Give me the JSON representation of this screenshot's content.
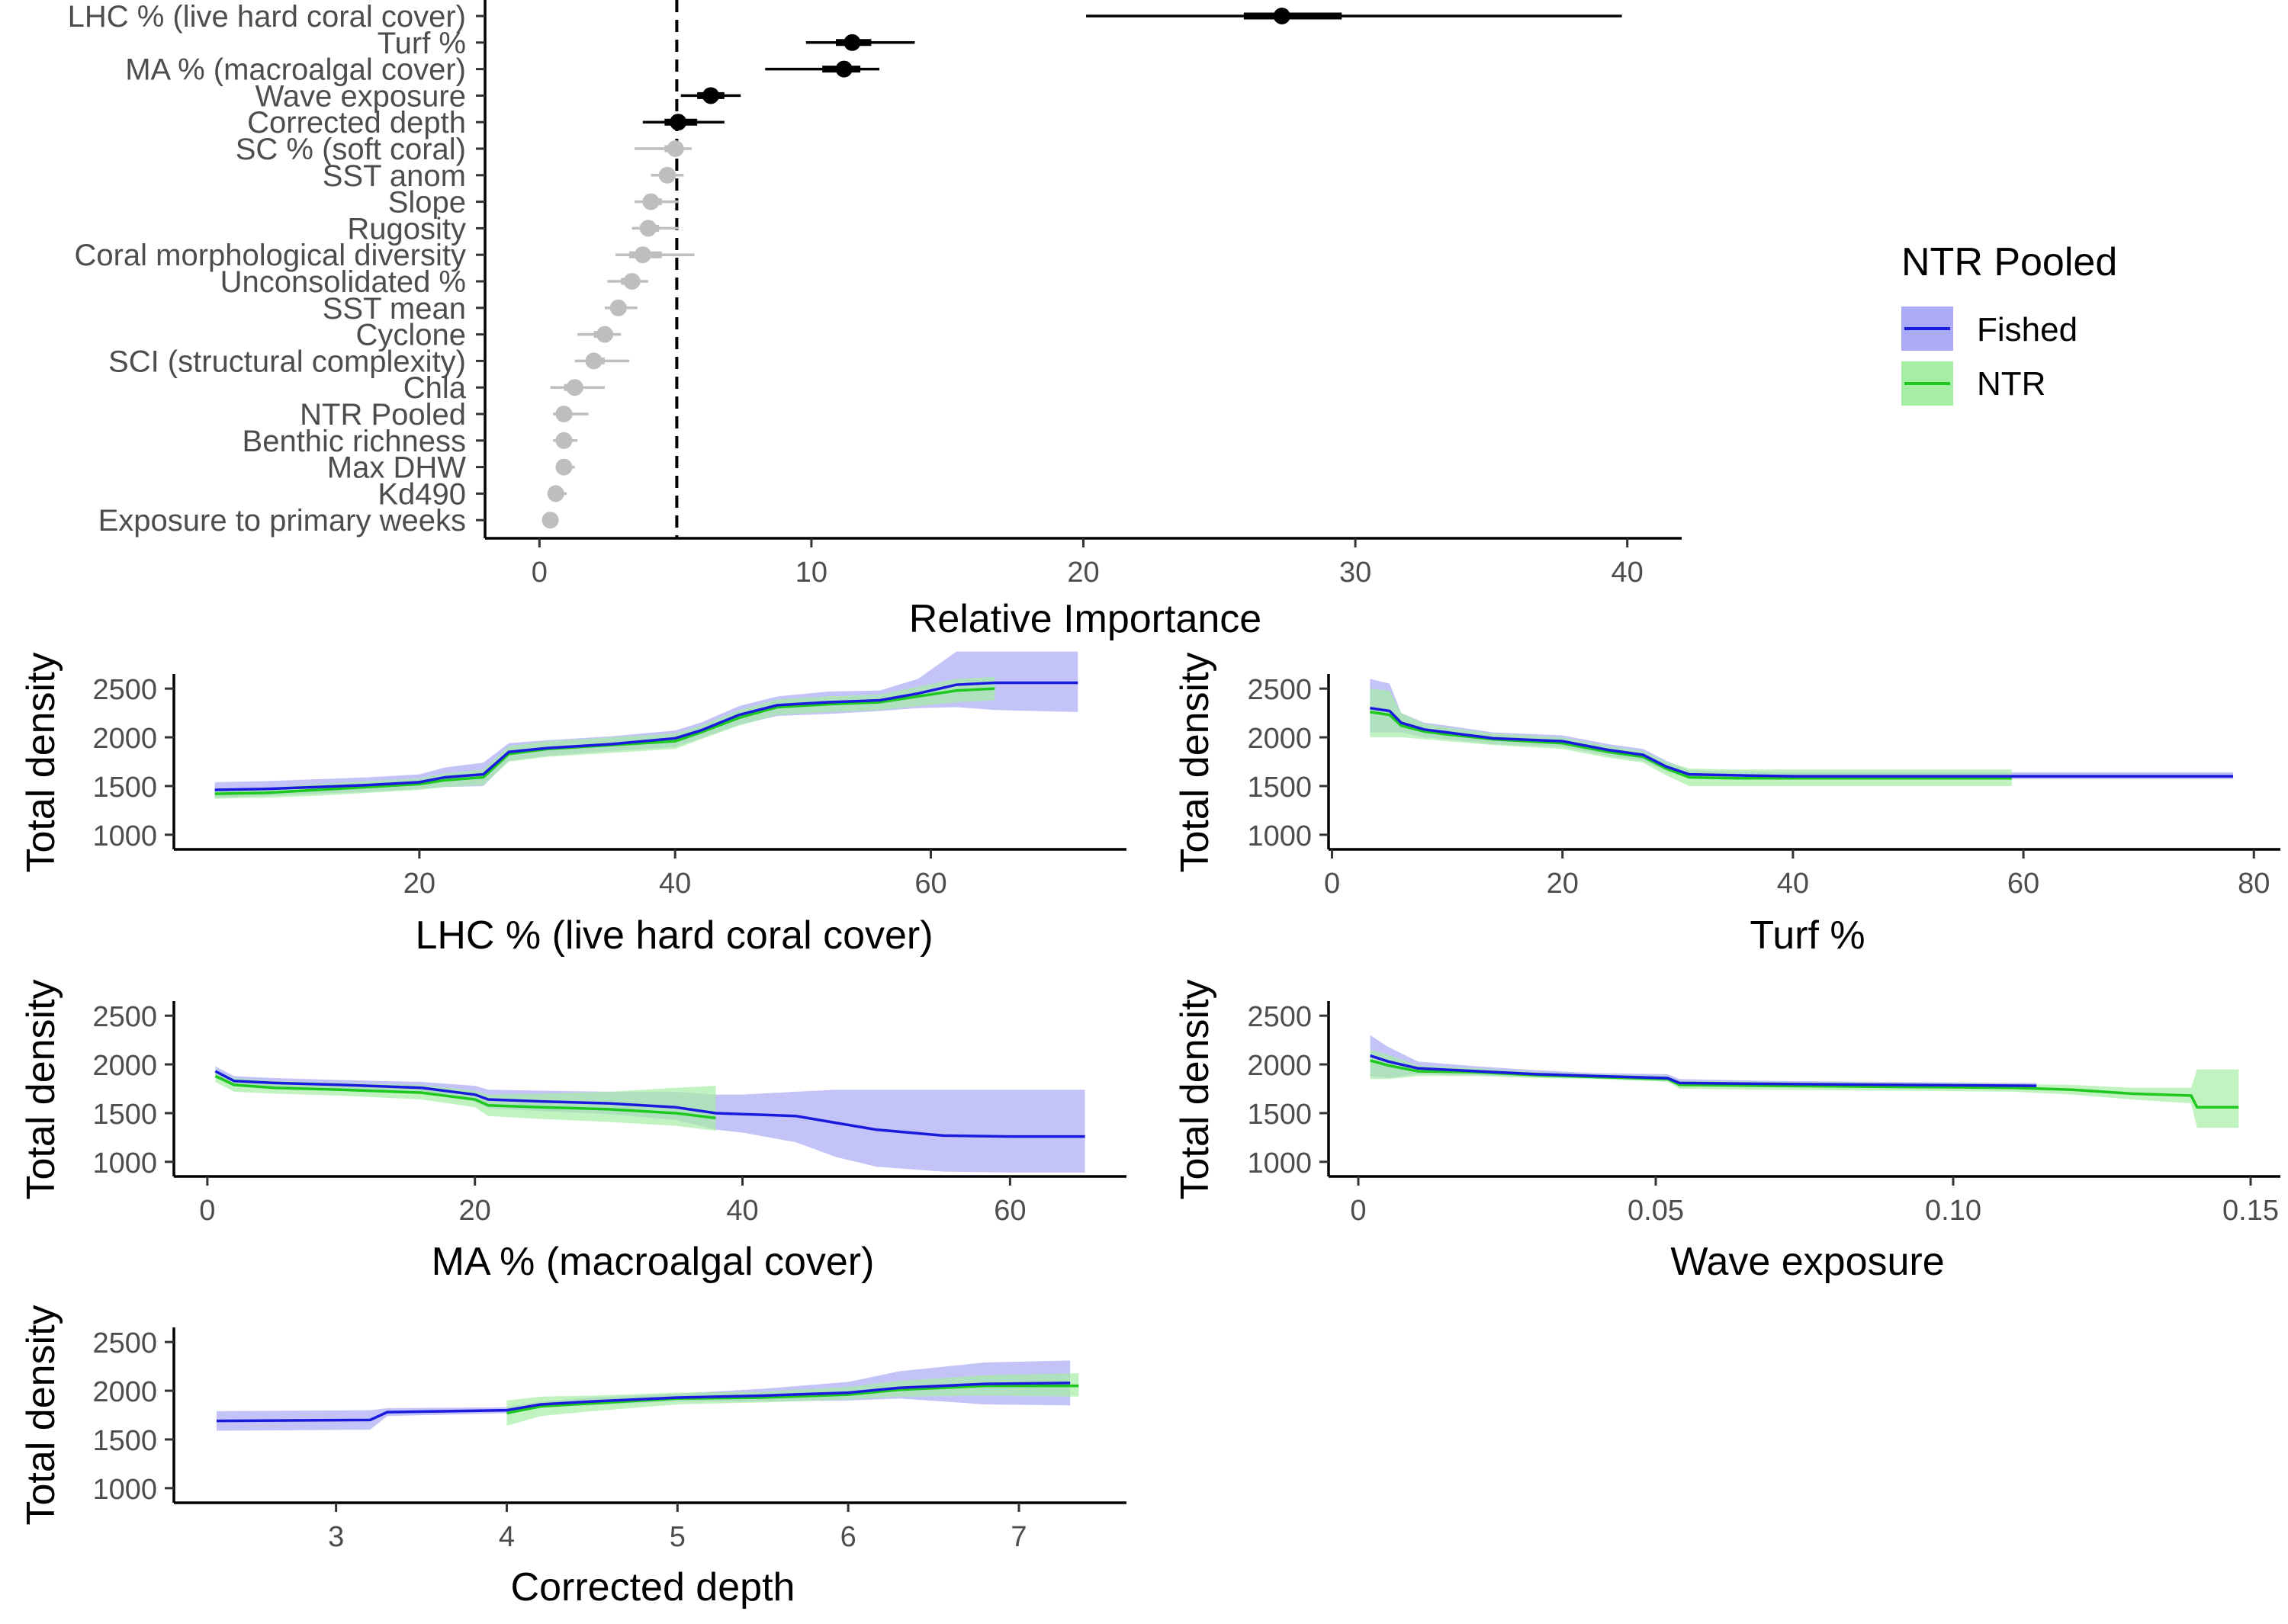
{
  "colors": {
    "fished": "#1a1adf",
    "fished_fill": "#aaaaf5",
    "ntr": "#1fc81f",
    "ntr_fill": "#a6eea6",
    "significant": "#000000",
    "nonsignificant": "#bebebe"
  },
  "legend": {
    "title": "NTR Pooled",
    "items": [
      "Fished",
      "NTR"
    ]
  },
  "chart_data": [
    {
      "type": "scatter",
      "xlabel": "Relative Importance",
      "xlim": [
        -2,
        42
      ],
      "xticks": [
        0,
        10,
        20,
        30,
        40
      ],
      "threshold": 5.05,
      "variables": [
        {
          "label": "LHC % (live hard coral cover)",
          "value": 27.3,
          "lo": 20.1,
          "hi": 39.8,
          "ilo": 25.9,
          "ihi": 29.5,
          "significant": true
        },
        {
          "label": "Turf %",
          "value": 11.5,
          "lo": 9.8,
          "hi": 13.8,
          "ilo": 10.9,
          "ihi": 12.2,
          "significant": true
        },
        {
          "label": "MA % (macroalgal cover)",
          "value": 11.2,
          "lo": 8.3,
          "hi": 12.5,
          "ilo": 10.4,
          "ihi": 11.8,
          "significant": true
        },
        {
          "label": "Wave exposure",
          "value": 6.3,
          "lo": 5.2,
          "hi": 7.4,
          "ilo": 5.8,
          "ihi": 6.8,
          "significant": true
        },
        {
          "label": "Corrected depth",
          "value": 5.1,
          "lo": 3.8,
          "hi": 6.8,
          "ilo": 4.6,
          "ihi": 5.8,
          "significant": true
        },
        {
          "label": "SC % (soft coral)",
          "value": 5.0,
          "lo": 3.5,
          "hi": 5.6,
          "ilo": 4.6,
          "ihi": 5.3,
          "significant": false
        },
        {
          "label": "SST anom",
          "value": 4.7,
          "lo": 4.1,
          "hi": 5.3,
          "ilo": 4.4,
          "ihi": 5.0,
          "significant": false
        },
        {
          "label": "Slope",
          "value": 4.1,
          "lo": 3.5,
          "hi": 5.1,
          "ilo": 3.8,
          "ihi": 4.5,
          "significant": false
        },
        {
          "label": "Rugosity",
          "value": 4.0,
          "lo": 3.4,
          "hi": 5.1,
          "ilo": 3.7,
          "ihi": 4.4,
          "significant": false
        },
        {
          "label": "Coral morphological diversity",
          "value": 3.8,
          "lo": 2.8,
          "hi": 5.7,
          "ilo": 3.3,
          "ihi": 4.5,
          "significant": false
        },
        {
          "label": "Unconsolidated %",
          "value": 3.4,
          "lo": 2.5,
          "hi": 4.0,
          "ilo": 3.0,
          "ihi": 3.7,
          "significant": false
        },
        {
          "label": "SST mean",
          "value": 2.9,
          "lo": 2.4,
          "hi": 3.6,
          "ilo": 2.7,
          "ihi": 3.2,
          "significant": false
        },
        {
          "label": "Cyclone",
          "value": 2.4,
          "lo": 1.4,
          "hi": 3.0,
          "ilo": 2.0,
          "ihi": 2.7,
          "significant": false
        },
        {
          "label": "SCI (structural complexity)",
          "value": 2.0,
          "lo": 1.3,
          "hi": 3.3,
          "ilo": 1.7,
          "ihi": 2.4,
          "significant": false
        },
        {
          "label": "Chla",
          "value": 1.3,
          "lo": 0.4,
          "hi": 2.4,
          "ilo": 0.9,
          "ihi": 1.6,
          "significant": false
        },
        {
          "label": "NTR Pooled",
          "value": 0.9,
          "lo": 0.5,
          "hi": 1.8,
          "ilo": 0.7,
          "ihi": 1.2,
          "significant": false
        },
        {
          "label": "Benthic richness",
          "value": 0.9,
          "lo": 0.5,
          "hi": 1.4,
          "ilo": 0.7,
          "ihi": 1.1,
          "significant": false
        },
        {
          "label": "Max DHW",
          "value": 0.9,
          "lo": 0.6,
          "hi": 1.3,
          "ilo": 0.7,
          "ihi": 1.1,
          "significant": false
        },
        {
          "label": "Kd490",
          "value": 0.6,
          "lo": 0.3,
          "hi": 1.0,
          "ilo": 0.5,
          "ihi": 0.8,
          "significant": false
        },
        {
          "label": "Exposure to primary weeks",
          "value": 0.4,
          "lo": 0.3,
          "hi": 0.6,
          "ilo": 0.3,
          "ihi": 0.5,
          "significant": false
        }
      ]
    },
    {
      "type": "line",
      "xlabel": "LHC % (live hard coral cover)",
      "ylabel": "Total density",
      "xlim": [
        0.8,
        75.3
      ],
      "xticks": [
        20,
        40,
        60
      ],
      "ylim": [
        850,
        2650
      ],
      "yticks": [
        1000,
        1500,
        2000,
        2500
      ],
      "series": [
        {
          "name": "Fished",
          "x": [
            4,
            8,
            12,
            16,
            20,
            22,
            25,
            27,
            30,
            35,
            40,
            42,
            45,
            48,
            52,
            56,
            59,
            62,
            65,
            68,
            71.5
          ],
          "y": [
            1460,
            1470,
            1490,
            1510,
            1540,
            1590,
            1620,
            1850,
            1890,
            1930,
            1990,
            2070,
            2230,
            2330,
            2360,
            2380,
            2450,
            2540,
            2560,
            2560,
            2560
          ],
          "lo": [
            1380,
            1400,
            1420,
            1440,
            1470,
            1490,
            1500,
            1760,
            1810,
            1860,
            1900,
            1990,
            2130,
            2220,
            2240,
            2270,
            2300,
            2310,
            2280,
            2270,
            2260
          ],
          "hi": [
            1540,
            1550,
            1570,
            1590,
            1620,
            1690,
            1740,
            1940,
            1970,
            2010,
            2070,
            2150,
            2320,
            2420,
            2470,
            2480,
            2600,
            2880,
            2880,
            2880,
            2880
          ]
        },
        {
          "name": "NTR",
          "x": [
            4,
            8,
            12,
            16,
            20,
            22,
            25,
            27,
            30,
            35,
            40,
            42,
            45,
            48,
            52,
            56,
            59,
            62,
            65
          ],
          "y": [
            1420,
            1430,
            1460,
            1490,
            1520,
            1560,
            1590,
            1830,
            1880,
            1920,
            1960,
            2050,
            2200,
            2310,
            2340,
            2360,
            2420,
            2480,
            2500
          ],
          "lo": [
            1370,
            1380,
            1400,
            1430,
            1460,
            1490,
            1510,
            1750,
            1800,
            1840,
            1880,
            1980,
            2120,
            2230,
            2260,
            2280,
            2320,
            2360,
            2380
          ],
          "hi": [
            1470,
            1480,
            1520,
            1550,
            1580,
            1630,
            1670,
            1910,
            1960,
            2000,
            2040,
            2120,
            2280,
            2390,
            2420,
            2440,
            2520,
            2600,
            2620
          ]
        }
      ]
    },
    {
      "type": "line",
      "xlabel": "Turf %",
      "ylabel": "Total density",
      "xlim": [
        -0.3,
        82.3
      ],
      "xticks": [
        0,
        20,
        40,
        60,
        80
      ],
      "ylim": [
        850,
        2650
      ],
      "yticks": [
        1000,
        1500,
        2000,
        2500
      ],
      "series": [
        {
          "name": "Fished",
          "x": [
            3.3,
            5,
            6,
            8,
            10,
            14,
            20,
            24,
            27,
            29,
            31,
            35,
            40,
            50,
            60,
            70,
            78.2
          ],
          "y": [
            2300,
            2270,
            2150,
            2080,
            2050,
            1990,
            1960,
            1870,
            1820,
            1700,
            1620,
            1610,
            1600,
            1600,
            1600,
            1600,
            1600
          ],
          "lo": [
            2050,
            2050,
            2050,
            2000,
            1980,
            1930,
            1900,
            1810,
            1760,
            1650,
            1580,
            1570,
            1570,
            1570,
            1570,
            1570,
            1570
          ],
          "hi": [
            2600,
            2550,
            2250,
            2150,
            2120,
            2050,
            2020,
            1930,
            1880,
            1760,
            1660,
            1650,
            1640,
            1640,
            1640,
            1640,
            1640
          ]
        },
        {
          "name": "NTR",
          "x": [
            3.3,
            5,
            6,
            8,
            10,
            14,
            20,
            24,
            27,
            29,
            31,
            35,
            40,
            50,
            59
          ],
          "y": [
            2260,
            2230,
            2120,
            2060,
            2030,
            1980,
            1940,
            1850,
            1800,
            1680,
            1590,
            1580,
            1580,
            1580,
            1580
          ],
          "lo": [
            2000,
            2000,
            2000,
            1980,
            1960,
            1920,
            1880,
            1790,
            1740,
            1610,
            1500,
            1500,
            1500,
            1500,
            1500
          ],
          "hi": [
            2500,
            2480,
            2250,
            2140,
            2100,
            2040,
            2000,
            1910,
            1860,
            1750,
            1680,
            1670,
            1670,
            1670,
            1670
          ]
        }
      ]
    },
    {
      "type": "line",
      "xlabel": "MA % (macroalgal cover)",
      "ylabel": "Total density",
      "xlim": [
        -2.5,
        68.7
      ],
      "xticks": [
        0,
        20,
        40,
        60
      ],
      "ylim": [
        850,
        2650
      ],
      "yticks": [
        1000,
        1500,
        2000,
        2500
      ],
      "series": [
        {
          "name": "Fished",
          "x": [
            0.6,
            2,
            5,
            10,
            16,
            20,
            21,
            25,
            30,
            35,
            38,
            40,
            44,
            47,
            50,
            55,
            60,
            65.6
          ],
          "y": [
            1930,
            1830,
            1810,
            1790,
            1760,
            1690,
            1640,
            1620,
            1600,
            1560,
            1500,
            1490,
            1470,
            1400,
            1330,
            1270,
            1260,
            1260
          ],
          "lo": [
            1880,
            1780,
            1760,
            1740,
            1700,
            1620,
            1550,
            1520,
            1490,
            1430,
            1330,
            1300,
            1200,
            1050,
            950,
            900,
            890,
            890
          ],
          "hi": [
            1980,
            1880,
            1860,
            1840,
            1820,
            1780,
            1740,
            1730,
            1720,
            1720,
            1690,
            1690,
            1720,
            1740,
            1740,
            1740,
            1740,
            1740
          ]
        },
        {
          "name": "NTR",
          "x": [
            0.6,
            2,
            5,
            10,
            16,
            20,
            21,
            25,
            30,
            35,
            38
          ],
          "y": [
            1880,
            1790,
            1760,
            1740,
            1710,
            1640,
            1580,
            1560,
            1540,
            1500,
            1450
          ],
          "lo": [
            1820,
            1720,
            1700,
            1680,
            1640,
            1560,
            1470,
            1440,
            1410,
            1370,
            1320
          ],
          "hi": [
            1940,
            1860,
            1830,
            1810,
            1790,
            1730,
            1690,
            1700,
            1720,
            1760,
            1780
          ]
        }
      ]
    },
    {
      "type": "line",
      "xlabel": "Wave exposure",
      "ylabel": "Total density",
      "xlim": [
        -0.005,
        0.155
      ],
      "xticks": [
        0.0,
        0.05,
        0.1,
        0.15
      ],
      "ylim": [
        850,
        2650
      ],
      "yticks": [
        1000,
        1500,
        2000,
        2500
      ],
      "series": [
        {
          "name": "Fished",
          "x": [
            0.002,
            0.005,
            0.01,
            0.02,
            0.03,
            0.04,
            0.052,
            0.054,
            0.07,
            0.09,
            0.114
          ],
          "y": [
            2090,
            2030,
            1960,
            1930,
            1900,
            1880,
            1860,
            1810,
            1800,
            1790,
            1780
          ],
          "lo": [
            1880,
            1860,
            1900,
            1890,
            1870,
            1860,
            1830,
            1780,
            1770,
            1760,
            1750
          ],
          "hi": [
            2300,
            2180,
            2030,
            1980,
            1940,
            1910,
            1900,
            1850,
            1830,
            1820,
            1810
          ]
        },
        {
          "name": "NTR",
          "x": [
            0.002,
            0.005,
            0.01,
            0.02,
            0.03,
            0.04,
            0.052,
            0.054,
            0.07,
            0.09,
            0.11,
            0.12,
            0.13,
            0.14,
            0.141,
            0.148
          ],
          "y": [
            2040,
            1990,
            1930,
            1920,
            1890,
            1870,
            1850,
            1790,
            1780,
            1770,
            1760,
            1740,
            1700,
            1680,
            1560,
            1560
          ],
          "lo": [
            1850,
            1850,
            1880,
            1880,
            1860,
            1850,
            1820,
            1750,
            1740,
            1730,
            1720,
            1690,
            1640,
            1600,
            1350,
            1350
          ],
          "hi": [
            2150,
            2100,
            1990,
            1960,
            1920,
            1900,
            1880,
            1830,
            1820,
            1810,
            1800,
            1790,
            1760,
            1760,
            1950,
            1950
          ]
        }
      ]
    },
    {
      "type": "line",
      "xlabel": "Corrected depth",
      "ylabel": "Total density",
      "xlim": [
        2.05,
        7.63
      ],
      "xticks": [
        3,
        4,
        5,
        6,
        7
      ],
      "ylim": [
        850,
        2650
      ],
      "yticks": [
        1000,
        1500,
        2000,
        2500
      ],
      "series": [
        {
          "name": "Fished",
          "x": [
            2.3,
            3.2,
            3.3,
            4.0,
            4.2,
            4.5,
            5.0,
            5.5,
            6.0,
            6.3,
            6.8,
            7.3
          ],
          "y": [
            1690,
            1700,
            1780,
            1800,
            1860,
            1890,
            1930,
            1950,
            1980,
            2030,
            2070,
            2080
          ],
          "lo": [
            1590,
            1600,
            1740,
            1770,
            1830,
            1850,
            1890,
            1890,
            1900,
            1920,
            1860,
            1850
          ],
          "hi": [
            1790,
            1800,
            1820,
            1830,
            1890,
            1930,
            1970,
            2020,
            2090,
            2200,
            2290,
            2310
          ]
        },
        {
          "name": "NTR",
          "x": [
            4.0,
            4.2,
            4.5,
            5.0,
            5.5,
            6.0,
            6.3,
            6.8,
            7.35
          ],
          "y": [
            1770,
            1840,
            1870,
            1920,
            1930,
            1960,
            2010,
            2050,
            2050
          ],
          "lo": [
            1640,
            1740,
            1790,
            1860,
            1880,
            1910,
            1940,
            1950,
            1940
          ],
          "hi": [
            1900,
            1940,
            1950,
            1980,
            1990,
            2040,
            2100,
            2160,
            2180
          ]
        }
      ]
    }
  ]
}
